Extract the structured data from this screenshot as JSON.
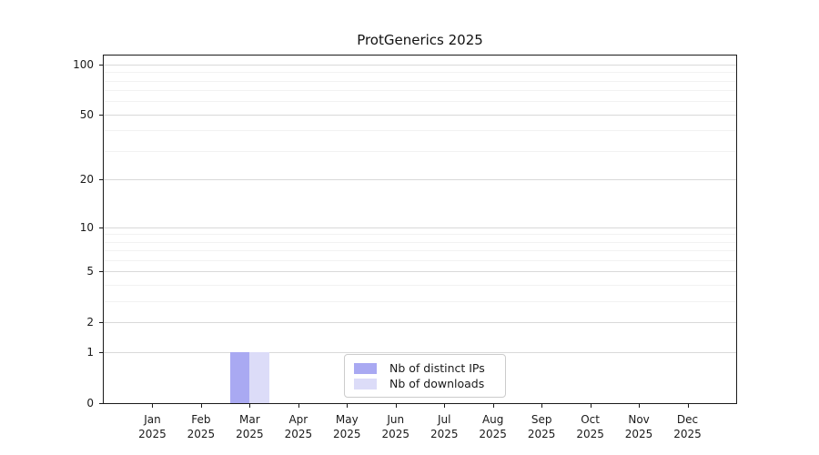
{
  "title": "ProtGenerics 2025",
  "chart_data": {
    "type": "bar",
    "title": "ProtGenerics 2025",
    "xlabel": "",
    "ylabel": "",
    "y_scale": "log1p",
    "ylim": [
      0,
      113
    ],
    "grid": "horizontal",
    "legend_position": "inside-bottom-center",
    "y_ticks": [
      0,
      1,
      2,
      5,
      10,
      20,
      50,
      100
    ],
    "major_gridlines": [
      1,
      2,
      5,
      10,
      20,
      50,
      100
    ],
    "minor_gridlines": [
      3,
      4,
      6,
      7,
      8,
      9,
      30,
      40,
      60,
      70,
      80,
      90
    ],
    "categories": [
      {
        "month": "Jan",
        "year": "2025"
      },
      {
        "month": "Feb",
        "year": "2025"
      },
      {
        "month": "Mar",
        "year": "2025"
      },
      {
        "month": "Apr",
        "year": "2025"
      },
      {
        "month": "May",
        "year": "2025"
      },
      {
        "month": "Jun",
        "year": "2025"
      },
      {
        "month": "Jul",
        "year": "2025"
      },
      {
        "month": "Aug",
        "year": "2025"
      },
      {
        "month": "Sep",
        "year": "2025"
      },
      {
        "month": "Oct",
        "year": "2025"
      },
      {
        "month": "Nov",
        "year": "2025"
      },
      {
        "month": "Dec",
        "year": "2025"
      }
    ],
    "series": [
      {
        "name": "Nb of distinct IPs",
        "color": "#a9a9f2",
        "values": [
          0,
          0,
          1,
          0,
          0,
          0,
          0,
          0,
          0,
          0,
          0,
          0
        ]
      },
      {
        "name": "Nb of downloads",
        "color": "#dcdcf8",
        "values": [
          0,
          0,
          1,
          0,
          0,
          0,
          0,
          0,
          0,
          0,
          0,
          0
        ]
      }
    ]
  }
}
